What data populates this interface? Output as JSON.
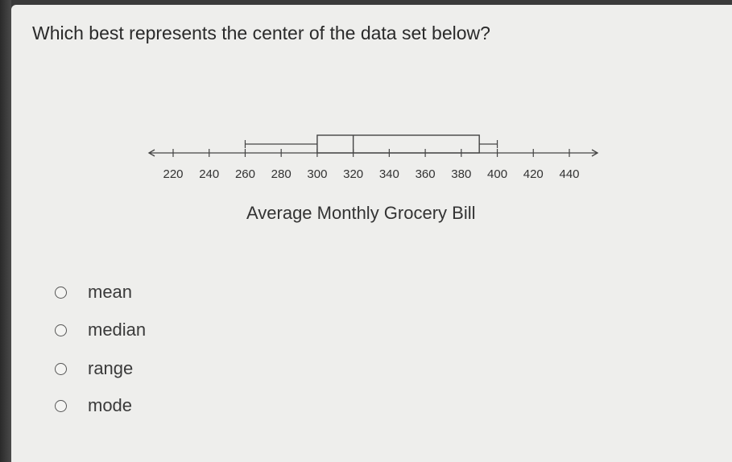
{
  "question": "Which best represents the center of the data set below?",
  "chart_data": {
    "type": "boxplot",
    "title": "Average Monthly Grocery Bill",
    "xlabel": "Average Monthly Grocery Bill",
    "axis": {
      "min": 220,
      "max": 440,
      "ticks": [
        220,
        240,
        260,
        280,
        300,
        320,
        340,
        360,
        380,
        400,
        420,
        440
      ],
      "arrows": "both"
    },
    "five_number_summary": {
      "min": 260,
      "q1": 300,
      "median": 320,
      "q3": 390,
      "max": 400
    }
  },
  "options": [
    {
      "label": "mean"
    },
    {
      "label": "median"
    },
    {
      "label": "range"
    },
    {
      "label": "mode"
    }
  ]
}
